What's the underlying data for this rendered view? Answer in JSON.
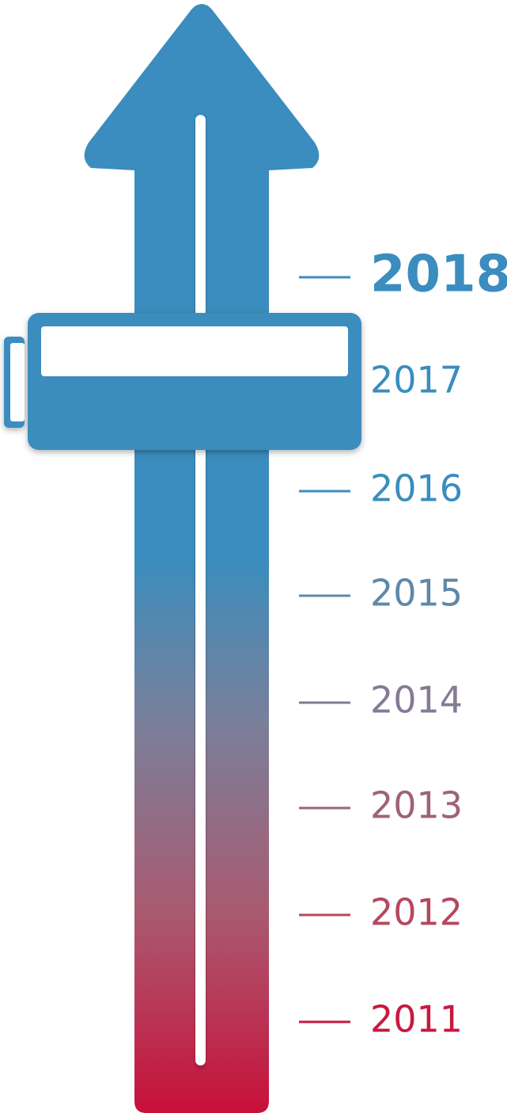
{
  "timeline": {
    "years": [
      "2018",
      "2017",
      "2016",
      "2015",
      "2014",
      "2013",
      "2012",
      "2011"
    ]
  }
}
